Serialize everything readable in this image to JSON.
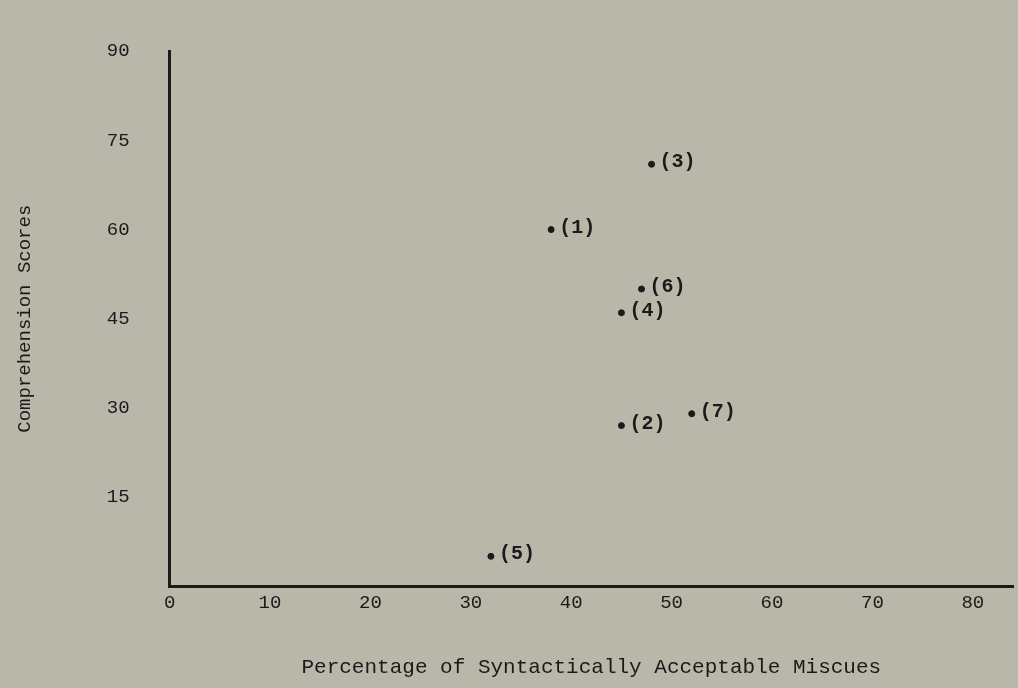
{
  "chart_data": {
    "type": "scatter",
    "xlabel": "Percentage of Syntactically Acceptable Miscues",
    "ylabel": "Comprehension Scores",
    "x": [
      38,
      45,
      48,
      45,
      32,
      47,
      52
    ],
    "values": [
      60,
      27,
      71,
      46,
      5,
      50,
      29
    ],
    "color": "#1a1a1a",
    "marker": "circle",
    "grid": false,
    "legend": false,
    "xlim": [
      0,
      84
    ],
    "xticks": [
      0,
      10,
      20,
      30,
      40,
      50,
      60,
      70,
      80
    ],
    "ylim": [
      0,
      90
    ],
    "yticks": [
      15,
      30,
      45,
      60,
      75,
      90
    ],
    "annotations": [
      {
        "text": "(1)",
        "x": 38,
        "y": 60
      },
      {
        "text": "(2)",
        "x": 45,
        "y": 27
      },
      {
        "text": "(3)",
        "x": 48,
        "y": 71
      },
      {
        "text": "(4)",
        "x": 45,
        "y": 46
      },
      {
        "text": "(5)",
        "x": 32,
        "y": 5
      },
      {
        "text": "(6)",
        "x": 47,
        "y": 50
      },
      {
        "text": "(7)",
        "x": 52,
        "y": 29
      }
    ]
  }
}
